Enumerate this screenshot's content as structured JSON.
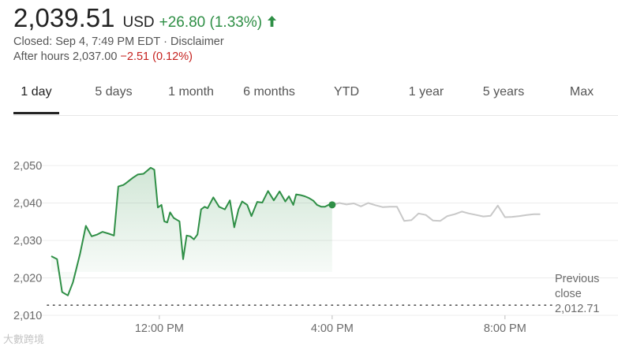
{
  "quote": {
    "price": "2,039.51",
    "currency": "USD",
    "change": "+26.80 (1.33%)",
    "arrow_icon": "arrow-up-icon",
    "closed_text": "Closed: Sep 4, 7:49 PM EDT",
    "separator": "·",
    "disclaimer": "Disclaimer",
    "after_hours_label": "After hours 2,037.00",
    "after_hours_change": "−2.51 (0.12%)"
  },
  "tabs": [
    {
      "label": "1 day",
      "active": true
    },
    {
      "label": "5 days",
      "active": false
    },
    {
      "label": "1 month",
      "active": false
    },
    {
      "label": "6 months",
      "active": false
    },
    {
      "label": "YTD",
      "active": false
    },
    {
      "label": "1 year",
      "active": false
    },
    {
      "label": "5 years",
      "active": false
    },
    {
      "label": "Max",
      "active": false
    }
  ],
  "colors": {
    "up": "#2f8f46",
    "down": "#c5221f",
    "after_hours_line": "#c8c8c8",
    "fill": "#2f8f46"
  },
  "watermark": "大數跨境",
  "chart_data": {
    "type": "line",
    "title": "",
    "xlabel": "",
    "ylabel": "",
    "ylim": [
      2010,
      2055
    ],
    "xlim": [
      "9:30 AM",
      "8:55 PM"
    ],
    "x_ticks": [
      "12:00 PM",
      "4:00 PM",
      "8:00 PM"
    ],
    "y_ticks": [
      "2,010",
      "2,020",
      "2,030",
      "2,040",
      "2,050"
    ],
    "grid": "horizontal",
    "previous_close": {
      "label_line1": "Previous",
      "label_line2": "close",
      "value": "2,012.71",
      "y": 2012.71
    },
    "current_marker": {
      "x": "4:00 PM",
      "y": 2039.51
    },
    "series": [
      {
        "segment": "regular",
        "color": "#2f8f46",
        "x": [
          "9:30 AM",
          "9:38 AM",
          "9:45 AM",
          "9:53 AM",
          "10:00 AM",
          "10:10 AM",
          "10:18 AM",
          "10:26 AM",
          "10:34 AM",
          "10:41 AM",
          "10:50 AM",
          "10:57 AM",
          "11:03 AM",
          "11:10 AM",
          "11:13 AM",
          "11:23 AM",
          "11:30 AM",
          "11:38 AM",
          "11:48 AM",
          "11:53 AM",
          "11:58 AM",
          "12:03 PM",
          "12:07 PM",
          "12:11 PM",
          "12:15 PM",
          "12:20 PM",
          "12:28 PM",
          "12:33 PM",
          "12:38 PM",
          "12:43 PM",
          "12:48 PM",
          "12:53 PM",
          "12:58 PM",
          "1:03 PM",
          "1:07 PM",
          "1:15 PM",
          "1:23 PM",
          "1:31 PM",
          "1:38 PM",
          "1:44 PM",
          "1:50 PM",
          "1:55 PM",
          "2:02 PM",
          "2:08 PM",
          "2:16 PM",
          "2:23 PM",
          "2:31 PM",
          "2:39 PM",
          "2:47 PM",
          "2:55 PM",
          "3:00 PM",
          "3:06 PM",
          "3:10 PM",
          "3:16 PM",
          "3:22 PM",
          "3:28 PM",
          "3:34 PM",
          "3:39 PM",
          "3:45 PM",
          "3:50 PM",
          "3:55 PM",
          "4:00 PM"
        ],
        "y": [
          2025.8,
          2025.0,
          2016.2,
          2015.3,
          2018.8,
          2026.5,
          2033.9,
          2031.1,
          2031.6,
          2032.3,
          2031.8,
          2031.3,
          2044.4,
          2044.8,
          2045.2,
          2046.7,
          2047.6,
          2047.8,
          2049.4,
          2048.9,
          2038.8,
          2039.5,
          2035.1,
          2034.8,
          2037.5,
          2036.0,
          2035.1,
          2025.0,
          2031.3,
          2031.1,
          2030.3,
          2031.6,
          2038.3,
          2039.0,
          2038.6,
          2041.5,
          2039.0,
          2038.3,
          2040.7,
          2033.5,
          2038.3,
          2040.4,
          2039.5,
          2036.5,
          2040.3,
          2040.1,
          2043.2,
          2040.7,
          2043.1,
          2040.4,
          2041.8,
          2039.5,
          2042.3,
          2042.1,
          2041.8,
          2041.3,
          2040.6,
          2039.5,
          2039.0,
          2039.0,
          2039.5,
          2039.5
        ]
      },
      {
        "segment": "after_hours",
        "color": "#c8c8c8",
        "x": [
          "4:00 PM",
          "4:10 PM",
          "4:20 PM",
          "4:30 PM",
          "4:40 PM",
          "4:50 PM",
          "5:00 PM",
          "5:10 PM",
          "5:20 PM",
          "5:30 PM",
          "5:40 PM",
          "5:50 PM",
          "6:00 PM",
          "6:10 PM",
          "6:20 PM",
          "6:30 PM",
          "6:40 PM",
          "6:50 PM",
          "7:00 PM",
          "7:10 PM",
          "7:20 PM",
          "7:30 PM",
          "7:40 PM",
          "7:50 PM",
          "8:00 PM",
          "8:10 PM",
          "8:20 PM",
          "8:30 PM",
          "8:40 PM",
          "8:49 PM"
        ],
        "y": [
          2039.5,
          2040.0,
          2039.6,
          2039.9,
          2039.1,
          2040.0,
          2039.4,
          2038.9,
          2039.0,
          2039.0,
          2035.2,
          2035.4,
          2037.2,
          2036.8,
          2035.3,
          2035.2,
          2036.5,
          2037.0,
          2037.7,
          2037.2,
          2036.8,
          2036.4,
          2036.6,
          2039.3,
          2036.2,
          2036.3,
          2036.5,
          2036.8,
          2037.0,
          2037.0
        ]
      }
    ]
  }
}
